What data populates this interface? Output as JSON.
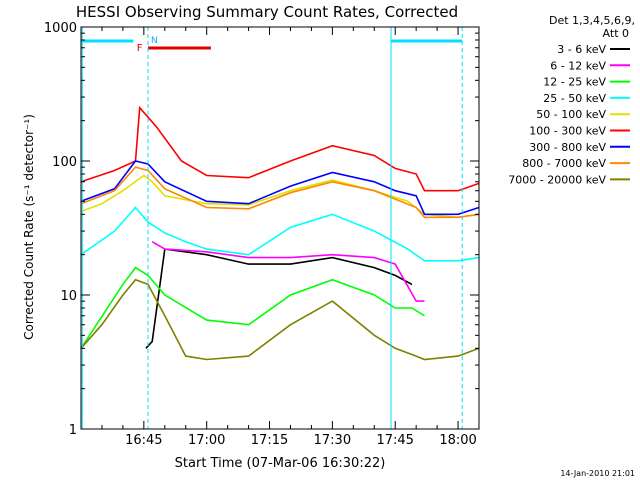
{
  "chart_data": {
    "type": "line",
    "title": "HESSI Observing Summary Count Rates, Corrected",
    "xlabel": "Start Time (07-Mar-06 16:30:22)",
    "ylabel": "Corrected Count Rate (s⁻¹ detector⁻¹)",
    "yscale": "log",
    "ylim": [
      1,
      1000
    ],
    "xlim_minutes": [
      0,
      95
    ],
    "x_ticks": [
      {
        "t": 15,
        "label": "16:45"
      },
      {
        "t": 30,
        "label": "17:00"
      },
      {
        "t": 45,
        "label": "17:15"
      },
      {
        "t": 60,
        "label": "17:30"
      },
      {
        "t": 75,
        "label": "17:45"
      },
      {
        "t": 90,
        "label": "18:00"
      }
    ],
    "y_ticks": [
      {
        "v": 1,
        "label": "1"
      },
      {
        "v": 10,
        "label": "10"
      },
      {
        "v": 100,
        "label": "100"
      },
      {
        "v": 1000,
        "label": "1000"
      }
    ],
    "legend": {
      "position": "right",
      "header": [
        "Det 1,3,4,5,6,9,",
        "Att 0"
      ]
    },
    "flag_labels": {
      "flare": "F",
      "night": "N"
    },
    "footer_date": "14-Jan-2010 21:01",
    "series": [
      {
        "name": "3 - 6 keV",
        "color": "#000000",
        "x": [
          15.5,
          17,
          20,
          30,
          40,
          50,
          60,
          70,
          75,
          79
        ],
        "y": [
          4,
          4.5,
          22,
          20,
          17,
          17,
          19,
          16,
          14,
          12
        ]
      },
      {
        "name": "6 - 12 keV",
        "color": "#ff00ff",
        "x": [
          17,
          20,
          30,
          40,
          50,
          60,
          70,
          75,
          80,
          82
        ],
        "y": [
          25,
          22,
          21,
          19,
          19,
          20,
          19,
          17,
          9,
          9
        ]
      },
      {
        "name": "12 - 25 keV",
        "color": "#00ff00",
        "x": [
          0,
          10,
          13,
          16,
          20,
          30,
          40,
          50,
          60,
          70,
          75,
          79,
          82
        ],
        "y": [
          4,
          12,
          16,
          14,
          10,
          6.5,
          6,
          10,
          13,
          10,
          8,
          8,
          7
        ]
      },
      {
        "name": "25 - 50 keV",
        "color": "#00ffff",
        "x": [
          0,
          8,
          13,
          16,
          20,
          25,
          30,
          40,
          50,
          60,
          70,
          78,
          82,
          90,
          95
        ],
        "y": [
          20,
          30,
          45,
          35,
          29,
          25,
          22,
          20,
          32,
          40,
          30,
          22,
          18,
          18,
          19
        ]
      },
      {
        "name": "50 - 100 keV",
        "color": "#e0e000",
        "x": [
          0,
          5,
          10,
          15,
          17,
          20,
          30,
          40,
          50,
          60,
          70,
          78,
          82,
          90,
          95
        ],
        "y": [
          42,
          48,
          60,
          78,
          70,
          55,
          48,
          47,
          60,
          72,
          60,
          50,
          40,
          38,
          40
        ]
      },
      {
        "name": "100 - 300 keV",
        "color": "#ff0000",
        "x": [
          0,
          8,
          13,
          14,
          18,
          24,
          30,
          40,
          50,
          60,
          70,
          75,
          80,
          82,
          90,
          95
        ],
        "y": [
          70,
          85,
          100,
          250,
          180,
          100,
          78,
          75,
          100,
          130,
          110,
          88,
          80,
          60,
          60,
          68
        ]
      },
      {
        "name": "300 - 800 keV",
        "color": "#0000ff",
        "x": [
          0,
          8,
          13,
          16,
          20,
          30,
          40,
          50,
          60,
          70,
          75,
          80,
          82,
          90,
          95
        ],
        "y": [
          50,
          62,
          100,
          95,
          70,
          50,
          48,
          65,
          82,
          70,
          60,
          55,
          40,
          40,
          45
        ]
      },
      {
        "name": "800 - 7000 keV",
        "color": "#ff8800",
        "x": [
          0,
          8,
          13,
          16,
          20,
          30,
          40,
          50,
          60,
          70,
          75,
          80,
          82,
          90,
          95
        ],
        "y": [
          48,
          60,
          90,
          85,
          62,
          45,
          44,
          58,
          70,
          60,
          52,
          45,
          38,
          38,
          40
        ]
      },
      {
        "name": "7000 - 20000 keV",
        "color": "#808000",
        "x": [
          0,
          5,
          10,
          13,
          16,
          20,
          25,
          30,
          40,
          50,
          60,
          70,
          75,
          80,
          82,
          90,
          95
        ],
        "y": [
          4,
          6,
          10,
          13,
          12,
          7,
          3.5,
          3.3,
          3.5,
          6,
          9,
          5,
          4,
          3.5,
          3.3,
          3.5,
          4
        ]
      }
    ]
  }
}
